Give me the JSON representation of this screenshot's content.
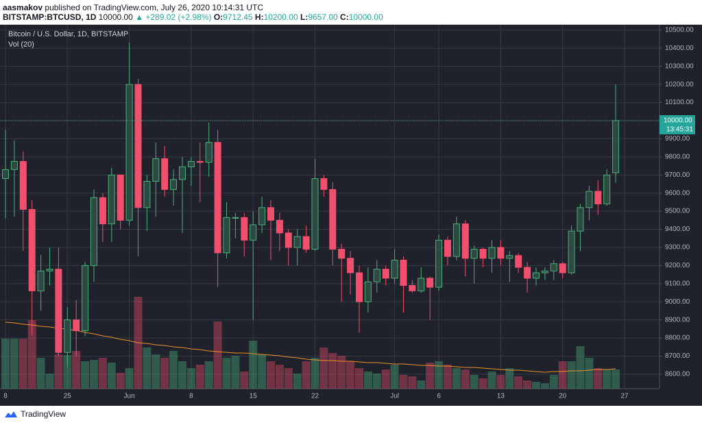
{
  "header": {
    "author": "aasmakov",
    "published": "published on TradingView.com, July 26, 2020 10:14:31 UTC",
    "symbol": "BITSTAMP:BTCUSD, 1D",
    "last": "10000.00",
    "change": "▲ +289.02 (+2.98%)",
    "ohlc": [
      {
        "key": "O:",
        "value": "9712.45"
      },
      {
        "key": "H:",
        "value": "10200.00"
      },
      {
        "key": "L:",
        "value": "9657.00"
      },
      {
        "key": "C:",
        "value": "10000.00"
      }
    ]
  },
  "chart_data": {
    "type": "candlestick",
    "title": "Bitcoin / U.S. Dollar, 1D, BITSTAMP",
    "volume_label": "Vol (20)",
    "categories": [
      "8",
      null,
      null,
      null,
      null,
      null,
      null,
      "25",
      null,
      null,
      null,
      null,
      null,
      null,
      "Jun",
      null,
      null,
      null,
      null,
      null,
      null,
      "8",
      null,
      null,
      null,
      null,
      null,
      null,
      "15",
      null,
      null,
      null,
      null,
      null,
      null,
      "22",
      null,
      null,
      null,
      null,
      null,
      null,
      null,
      null,
      "Jul",
      null,
      null,
      null,
      null,
      "6",
      null,
      null,
      null,
      null,
      null,
      null,
      "13",
      null,
      null,
      null,
      null,
      null,
      null,
      "20",
      null,
      null,
      null,
      null,
      null,
      null,
      "27"
    ],
    "open": [
      9680,
      9730,
      9775,
      9510,
      9060,
      9170,
      9180,
      8720,
      8900,
      8840,
      9200,
      9575,
      9430,
      9700,
      9450,
      10200,
      9520,
      9665,
      9790,
      9620,
      9675,
      9745,
      9775,
      9770,
      9880,
      9270,
      9465,
      9465,
      9340,
      9425,
      9520,
      9450,
      9380,
      9300,
      9360,
      9290,
      9680,
      9620,
      9290,
      9240,
      9160,
      9000,
      9110,
      9180,
      9130,
      9230,
      9090,
      9060,
      9130,
      9080,
      9340,
      9250,
      9430,
      9240,
      9290,
      9240,
      9300,
      9240,
      9255,
      9190,
      9130,
      9160,
      9170,
      9210,
      9160,
      9390,
      9520,
      9610,
      9540,
      9712.45,
      null
    ],
    "high": [
      9950,
      9890,
      9830,
      9560,
      9260,
      9300,
      9300,
      8970,
      9010,
      9220,
      9620,
      9600,
      9740,
      9700,
      10430,
      10230,
      9700,
      9880,
      9860,
      9730,
      9800,
      9800,
      9880,
      9990,
      9950,
      9550,
      9490,
      9490,
      9500,
      9580,
      9560,
      9490,
      9400,
      9400,
      9420,
      9790,
      9700,
      9660,
      9320,
      9280,
      9200,
      9190,
      9230,
      9200,
      9290,
      9250,
      9120,
      9190,
      9140,
      9370,
      9360,
      9470,
      9450,
      9310,
      9300,
      9340,
      9340,
      9280,
      9270,
      9220,
      9190,
      9190,
      9230,
      9220,
      9420,
      9540,
      9640,
      9670,
      9730,
      10200,
      null
    ],
    "low": [
      9460,
      9470,
      9280,
      8815,
      8950,
      9090,
      8700,
      8640,
      8700,
      8810,
      9110,
      9330,
      9330,
      9400,
      9420,
      9250,
      9390,
      9470,
      9580,
      9530,
      9380,
      9640,
      9550,
      9690,
      9080,
      9240,
      9350,
      9250,
      8900,
      9380,
      9230,
      9280,
      9200,
      9200,
      9270,
      9280,
      9580,
      9200,
      9000,
      9040,
      8830,
      8940,
      9050,
      9090,
      9100,
      8940,
      9050,
      9050,
      8900,
      9060,
      9200,
      9230,
      9140,
      9100,
      9190,
      9160,
      9200,
      9110,
      9160,
      9050,
      9090,
      9120,
      9120,
      9130,
      9150,
      9280,
      9450,
      9480,
      9530,
      9657,
      null
    ],
    "close": [
      9730,
      9775,
      9510,
      9060,
      9170,
      9180,
      8720,
      8900,
      8840,
      9200,
      9575,
      9430,
      9700,
      9450,
      10200,
      9520,
      9665,
      9790,
      9620,
      9675,
      9745,
      9775,
      9770,
      9880,
      9270,
      9465,
      9465,
      9340,
      9425,
      9520,
      9450,
      9380,
      9300,
      9360,
      9290,
      9680,
      9620,
      9290,
      9240,
      9160,
      9000,
      9110,
      9180,
      9130,
      9230,
      9090,
      9060,
      9130,
      9080,
      9340,
      9250,
      9430,
      9240,
      9290,
      9240,
      9300,
      9240,
      9255,
      9190,
      9130,
      9160,
      9170,
      9210,
      9160,
      9390,
      9520,
      9610,
      9540,
      9700,
      10000,
      null
    ],
    "volume": [
      73,
      73,
      73,
      100,
      45,
      22,
      50,
      49,
      55,
      40,
      42,
      45,
      38,
      23,
      30,
      134,
      60,
      50,
      45,
      55,
      40,
      30,
      35,
      40,
      98,
      45,
      48,
      25,
      70,
      50,
      40,
      35,
      30,
      22,
      40,
      45,
      60,
      52,
      48,
      40,
      30,
      25,
      22,
      28,
      35,
      20,
      18,
      12,
      38,
      40,
      35,
      30,
      28,
      20,
      15,
      25,
      20,
      30,
      18,
      12,
      10,
      8,
      20,
      40,
      40,
      62,
      45,
      30,
      28,
      28,
      null
    ],
    "volume_ma": [
      97,
      96,
      94,
      93,
      91,
      90,
      88,
      87,
      85,
      82,
      80,
      77,
      75,
      72,
      70,
      67,
      66,
      64,
      63,
      61,
      60,
      58,
      57,
      55,
      54,
      53,
      52,
      52,
      51,
      50,
      49,
      48,
      46,
      45,
      43,
      42,
      41,
      41,
      40,
      40,
      39,
      38,
      38,
      37,
      36,
      36,
      35,
      34,
      34,
      33,
      33,
      32,
      31,
      31,
      30,
      29,
      28,
      27,
      27,
      26,
      25,
      24,
      25,
      25,
      26,
      26,
      27,
      28,
      28,
      29,
      null
    ],
    "ylim": [
      8520,
      10530
    ],
    "yticks": [
      {
        "value": 8600,
        "label": "8600.00"
      },
      {
        "value": 8700,
        "label": "8700.00"
      },
      {
        "value": 8800,
        "label": "8800.00"
      },
      {
        "value": 8900,
        "label": "8900.00"
      },
      {
        "value": 9000,
        "label": "9000.00"
      },
      {
        "value": 9100,
        "label": "9100.00"
      },
      {
        "value": 9200,
        "label": "9200.00"
      },
      {
        "value": 9300,
        "label": "9300.00"
      },
      {
        "value": 9400,
        "label": "9400.00"
      },
      {
        "value": 9500,
        "label": "9500.00"
      },
      {
        "value": 9600,
        "label": "9600.00"
      },
      {
        "value": 9700,
        "label": "9700.00"
      },
      {
        "value": 9800,
        "label": "9800.00"
      },
      {
        "value": 9900,
        "label": "9900.00"
      },
      {
        "value": 10000,
        "label": "10000.00"
      },
      {
        "value": 10100,
        "label": "10100.00"
      },
      {
        "value": 10200,
        "label": "10200.00"
      },
      {
        "value": 10300,
        "label": "10300.00"
      },
      {
        "value": 10400,
        "label": "10400.00"
      },
      {
        "value": 10500,
        "label": "10500.00"
      }
    ],
    "last_price": {
      "value": 10000,
      "label": "10000.00"
    },
    "countdown": "13:45:31",
    "up_color": "#4caf7d",
    "down_color": "#f0506e",
    "ma_color": "#f0902a",
    "grid": true
  },
  "footer": {
    "brand": "TradingView"
  }
}
